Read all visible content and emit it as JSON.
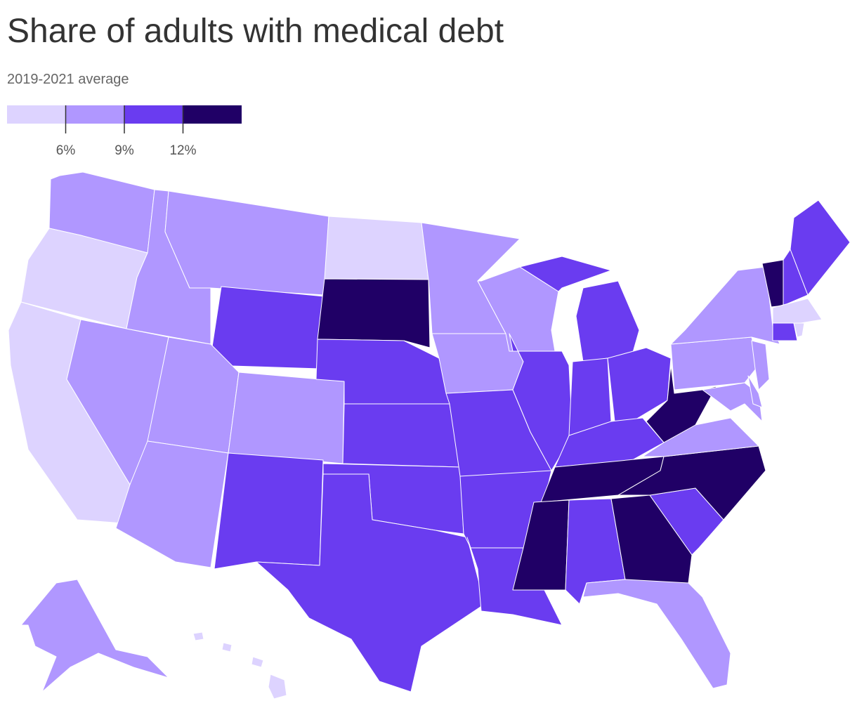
{
  "chart_data": {
    "type": "choropleth",
    "title": "Share of adults with medical debt",
    "subtitle": "2019-2021 average",
    "legend": {
      "colors": [
        "#ddd3ff",
        "#b097ff",
        "#6a3cf0",
        "#200066"
      ],
      "lim": [
        3,
        15
      ],
      "ticks": [
        {
          "value": 6,
          "label": "6%"
        },
        {
          "value": 9,
          "label": "9%"
        },
        {
          "value": 12,
          "label": "12%"
        }
      ]
    },
    "values": [
      1,
      0,
      0,
      1,
      1,
      1,
      2,
      1,
      1,
      1,
      2,
      0,
      3,
      2,
      2,
      2,
      2,
      1,
      1,
      2,
      2,
      2,
      1,
      2,
      2,
      2,
      2,
      2,
      3,
      3,
      2,
      3,
      1,
      2,
      3,
      1,
      3,
      1,
      1,
      1,
      1,
      1,
      3,
      2,
      2,
      0,
      2,
      0,
      1,
      0
    ]
  }
}
